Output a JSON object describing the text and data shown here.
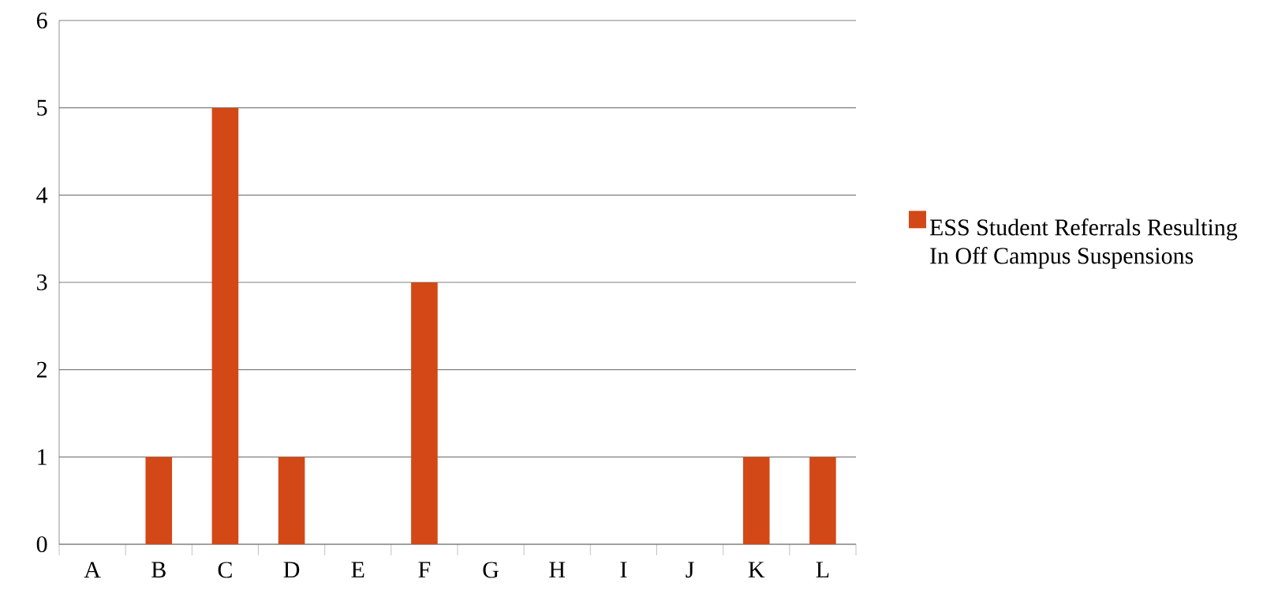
{
  "chart_data": {
    "type": "bar",
    "categories": [
      "A",
      "B",
      "C",
      "D",
      "E",
      "F",
      "G",
      "H",
      "I",
      "J",
      "K",
      "L"
    ],
    "series": [
      {
        "name": "ESS Student Referrals Resulting In Off Campus Suspensions",
        "color": "#d34817",
        "values": [
          0,
          1,
          5,
          1,
          0,
          3,
          0,
          0,
          0,
          0,
          1,
          1
        ]
      }
    ],
    "ylim": [
      0,
      6
    ],
    "yticks": [
      0,
      1,
      2,
      3,
      4,
      5,
      6
    ],
    "grid": "y",
    "legend": "right"
  }
}
